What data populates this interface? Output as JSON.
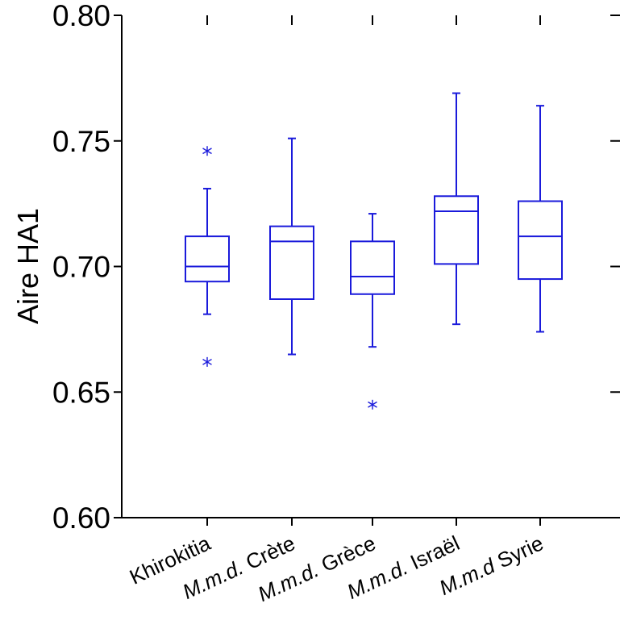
{
  "chart_data": {
    "type": "box",
    "ylabel": "Aire HA1",
    "xlabel": "",
    "ylim": [
      0.6,
      0.8
    ],
    "yticks": [
      "0.60",
      "0.65",
      "0.70",
      "0.75",
      "0.80"
    ],
    "grid": false,
    "color": "#1a1adb",
    "categories": [
      {
        "italic": "",
        "plain": "Khirokitia"
      },
      {
        "italic": "M.m.d.",
        "plain": " Crète"
      },
      {
        "italic": "M.m.d.",
        "plain": " Grèce"
      },
      {
        "italic": "M.m.d.",
        "plain": " Israël"
      },
      {
        "italic": "M.m.d",
        "plain": " Syrie"
      }
    ],
    "boxes": [
      {
        "whisker_low": 0.681,
        "q1": 0.694,
        "median": 0.7,
        "q3": 0.712,
        "whisker_high": 0.731,
        "outliers": [
          0.746,
          0.662
        ]
      },
      {
        "whisker_low": 0.665,
        "q1": 0.687,
        "median": 0.71,
        "q3": 0.716,
        "whisker_high": 0.751,
        "outliers": []
      },
      {
        "whisker_low": 0.668,
        "q1": 0.689,
        "median": 0.696,
        "q3": 0.71,
        "whisker_high": 0.721,
        "outliers": [
          0.645
        ]
      },
      {
        "whisker_low": 0.677,
        "q1": 0.701,
        "median": 0.722,
        "q3": 0.728,
        "whisker_high": 0.769,
        "outliers": []
      },
      {
        "whisker_low": 0.674,
        "q1": 0.695,
        "median": 0.712,
        "q3": 0.726,
        "whisker_high": 0.764,
        "outliers": []
      }
    ]
  }
}
